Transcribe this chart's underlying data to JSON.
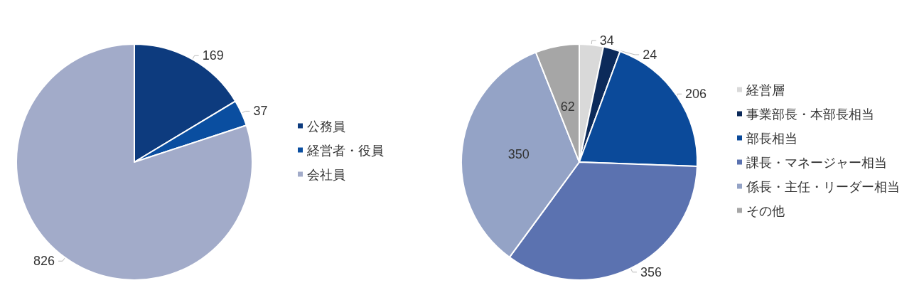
{
  "chart_data": [
    {
      "type": "pie",
      "categories": [
        "公務員",
        "経営者・役員",
        "会社員"
      ],
      "values": [
        169,
        37,
        826
      ],
      "colors": [
        "#0d3b7e",
        "#0a4ea0",
        "#a2abc9"
      ],
      "data_labels": true,
      "legend": "right"
    },
    {
      "type": "pie",
      "categories": [
        "経営層",
        "事業部長・本部長相当",
        "部長相当",
        "課長・マネージャー相当",
        "係長・主任・リーダー相当",
        "その他"
      ],
      "values": [
        34,
        24,
        206,
        356,
        350,
        62
      ],
      "colors": [
        "#d9d9d9",
        "#0c2a5a",
        "#0b4a9a",
        "#5b72b0",
        "#94a3c6",
        "#a6a6a6"
      ],
      "data_labels": true,
      "legend": "right"
    }
  ]
}
